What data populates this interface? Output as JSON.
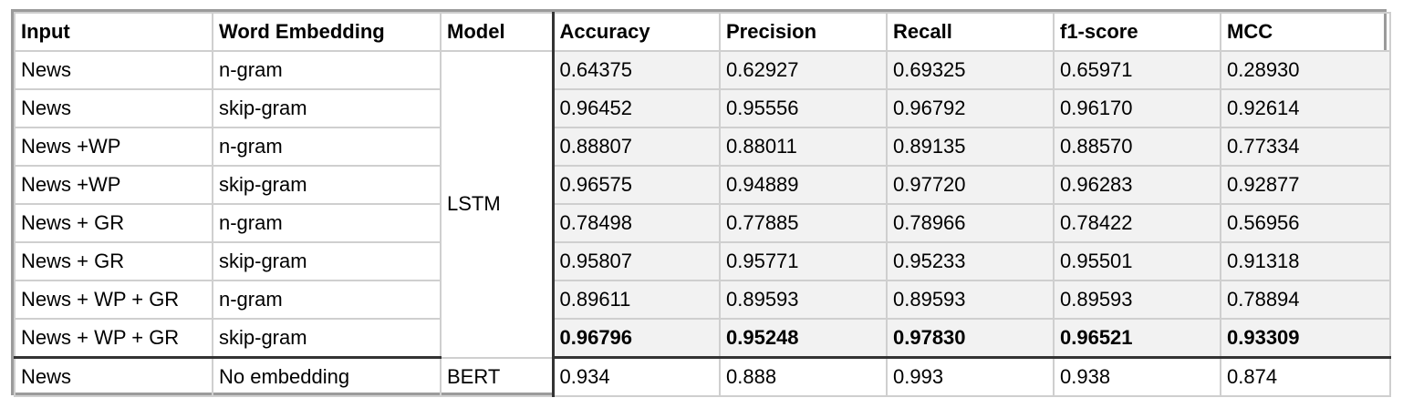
{
  "table": {
    "headers": [
      "Input",
      "Word Embedding",
      "Model",
      "Accuracy",
      "Precision",
      "Recall",
      "f1-score",
      "MCC"
    ],
    "lstm_model": "LSTM",
    "lstm_rows": [
      {
        "input": "News",
        "embedding": "n-gram",
        "values": [
          "0.64375",
          "0.62927",
          "0.69325",
          "0.65971",
          "0.28930"
        ]
      },
      {
        "input": "News",
        "embedding": "skip-gram",
        "values": [
          "0.96452",
          "0.95556",
          "0.96792",
          "0.96170",
          "0.92614"
        ]
      },
      {
        "input": "News +WP",
        "embedding": "n-gram",
        "values": [
          "0.88807",
          "0.88011",
          "0.89135",
          "0.88570",
          "0.77334"
        ]
      },
      {
        "input": "News +WP",
        "embedding": "skip-gram",
        "values": [
          "0.96575",
          "0.94889",
          "0.97720",
          "0.96283",
          "0.92877"
        ]
      },
      {
        "input": "News + GR",
        "embedding": "n-gram",
        "values": [
          "0.78498",
          "0.77885",
          "0.78966",
          "0.78422",
          "0.56956"
        ]
      },
      {
        "input": "News + GR",
        "embedding": "skip-gram",
        "values": [
          "0.95807",
          "0.95771",
          "0.95233",
          "0.95501",
          "0.91318"
        ]
      },
      {
        "input": "News + WP + GR",
        "embedding": "n-gram",
        "values": [
          "0.89611",
          "0.89593",
          "0.89593",
          "0.89593",
          "0.78894"
        ]
      },
      {
        "input": "News + WP + GR",
        "embedding": "skip-gram",
        "values": [
          "0.96796",
          "0.95248",
          "0.97830",
          "0.96521",
          "0.93309"
        ]
      }
    ],
    "bert_row": {
      "input": "News",
      "embedding": "No embedding",
      "model": "BERT",
      "values": [
        "0.934",
        "0.888",
        "0.993",
        "0.938",
        "0.874"
      ]
    }
  }
}
